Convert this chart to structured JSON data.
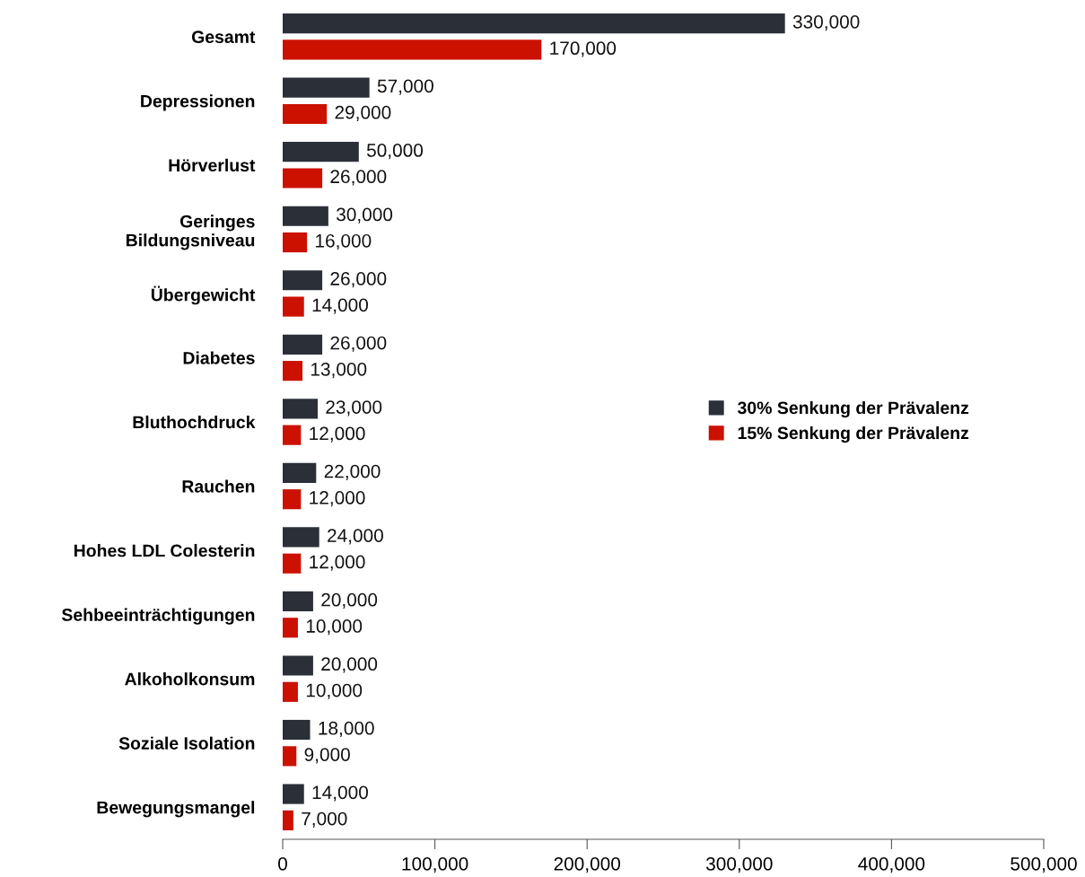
{
  "chart_data": {
    "type": "bar",
    "orientation": "horizontal",
    "categories": [
      "Gesamt",
      "Depressionen",
      "Hörverlust",
      "Geringes\nBildungsniveau",
      "Übergewicht",
      "Diabetes",
      "Bluthochdruck",
      "Rauchen",
      "Hohes LDL Colesterin",
      "Sehbeeinträchtigungen",
      "Alkoholkonsum",
      "Soziale Isolation",
      "Bewegungsmangel"
    ],
    "series": [
      {
        "name": "30% Senkung der Prävalenz",
        "color": "#2b3038",
        "values": [
          330000,
          57000,
          50000,
          30000,
          26000,
          26000,
          23000,
          22000,
          24000,
          20000,
          20000,
          18000,
          14000
        ],
        "value_labels": [
          "330,000",
          "57,000",
          "50,000",
          "30,000",
          "26,000",
          "26,000",
          "23,000",
          "22,000",
          "24,000",
          "20,000",
          "20,000",
          "18,000",
          "14,000"
        ]
      },
      {
        "name": "15% Senkung der Prävalenz",
        "color": "#cc1100",
        "values": [
          170000,
          29000,
          26000,
          16000,
          14000,
          13000,
          12000,
          12000,
          12000,
          10000,
          10000,
          9000,
          7000
        ],
        "value_labels": [
          "170,000",
          "29,000",
          "26,000",
          "16,000",
          "14,000",
          "13,000",
          "12,000",
          "12,000",
          "12,000",
          "10,000",
          "10,000",
          "9,000",
          "7,000"
        ]
      }
    ],
    "xlim": [
      0,
      500000
    ],
    "xticks": [
      0,
      {
        "value": 100000,
        "label": "100,000"
      },
      {
        "value": 200000,
        "label": "200,000"
      },
      {
        "value": 300000,
        "label": "300,000"
      },
      {
        "value": 400000,
        "label": "400,000"
      },
      {
        "value": 500000,
        "label": "500,000"
      }
    ],
    "grid": false,
    "legend": "right"
  }
}
